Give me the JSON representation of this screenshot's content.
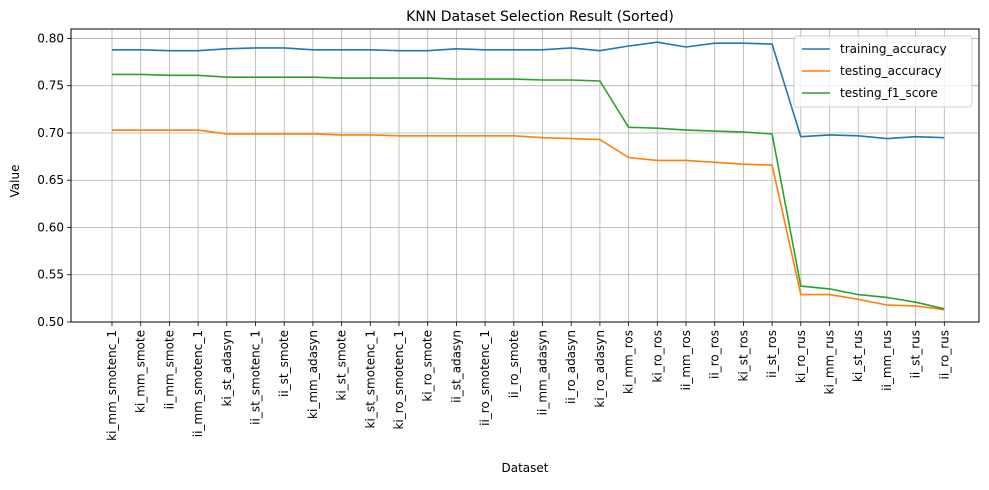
{
  "chart_data": {
    "type": "line",
    "title": "KNN Dataset Selection Result (Sorted)",
    "xlabel": "Dataset",
    "ylabel": "Value",
    "ylim": [
      0.5,
      0.81
    ],
    "yticks": [
      "0.50",
      "0.55",
      "0.60",
      "0.65",
      "0.70",
      "0.75",
      "0.80"
    ],
    "grid": true,
    "legend_position": "top-right",
    "categories": [
      "ki_mm_smotenc_1",
      "ki_mm_smote",
      "ii_mm_smote",
      "ii_mm_smotenc_1",
      "ki_st_adasyn",
      "ii_st_smotenc_1",
      "ii_st_smote",
      "ki_mm_adasyn",
      "ki_st_smote",
      "ki_st_smotenc_1",
      "ki_ro_smotenc_1",
      "ki_ro_smote",
      "ii_st_adasyn",
      "ii_ro_smotenc_1",
      "ii_ro_smote",
      "ii_mm_adasyn",
      "ii_ro_adasyn",
      "ki_ro_adasyn",
      "ki_mm_ros",
      "ki_ro_ros",
      "ii_mm_ros",
      "ii_ro_ros",
      "ki_st_ros",
      "ii_st_ros",
      "ki_ro_rus",
      "ki_mm_rus",
      "ki_st_rus",
      "ii_mm_rus",
      "ii_st_rus",
      "ii_ro_rus"
    ],
    "series": [
      {
        "name": "training_accuracy",
        "color": "#1f77b4",
        "values": [
          0.788,
          0.788,
          0.787,
          0.787,
          0.789,
          0.79,
          0.79,
          0.788,
          0.788,
          0.788,
          0.787,
          0.787,
          0.789,
          0.788,
          0.788,
          0.788,
          0.79,
          0.787,
          0.792,
          0.796,
          0.791,
          0.795,
          0.795,
          0.794,
          0.696,
          0.698,
          0.697,
          0.694,
          0.696,
          0.695
        ]
      },
      {
        "name": "testing_accuracy",
        "color": "#ff7f0e",
        "values": [
          0.703,
          0.703,
          0.703,
          0.703,
          0.699,
          0.699,
          0.699,
          0.699,
          0.698,
          0.698,
          0.697,
          0.697,
          0.697,
          0.697,
          0.697,
          0.695,
          0.694,
          0.693,
          0.674,
          0.671,
          0.671,
          0.669,
          0.667,
          0.666,
          0.529,
          0.529,
          0.524,
          0.518,
          0.517,
          0.513
        ]
      },
      {
        "name": "testing_f1_score",
        "color": "#2ca02c",
        "values": [
          0.762,
          0.762,
          0.761,
          0.761,
          0.759,
          0.759,
          0.759,
          0.759,
          0.758,
          0.758,
          0.758,
          0.758,
          0.757,
          0.757,
          0.757,
          0.756,
          0.756,
          0.755,
          0.706,
          0.705,
          0.703,
          0.702,
          0.701,
          0.699,
          0.538,
          0.535,
          0.529,
          0.526,
          0.521,
          0.514
        ]
      }
    ]
  }
}
